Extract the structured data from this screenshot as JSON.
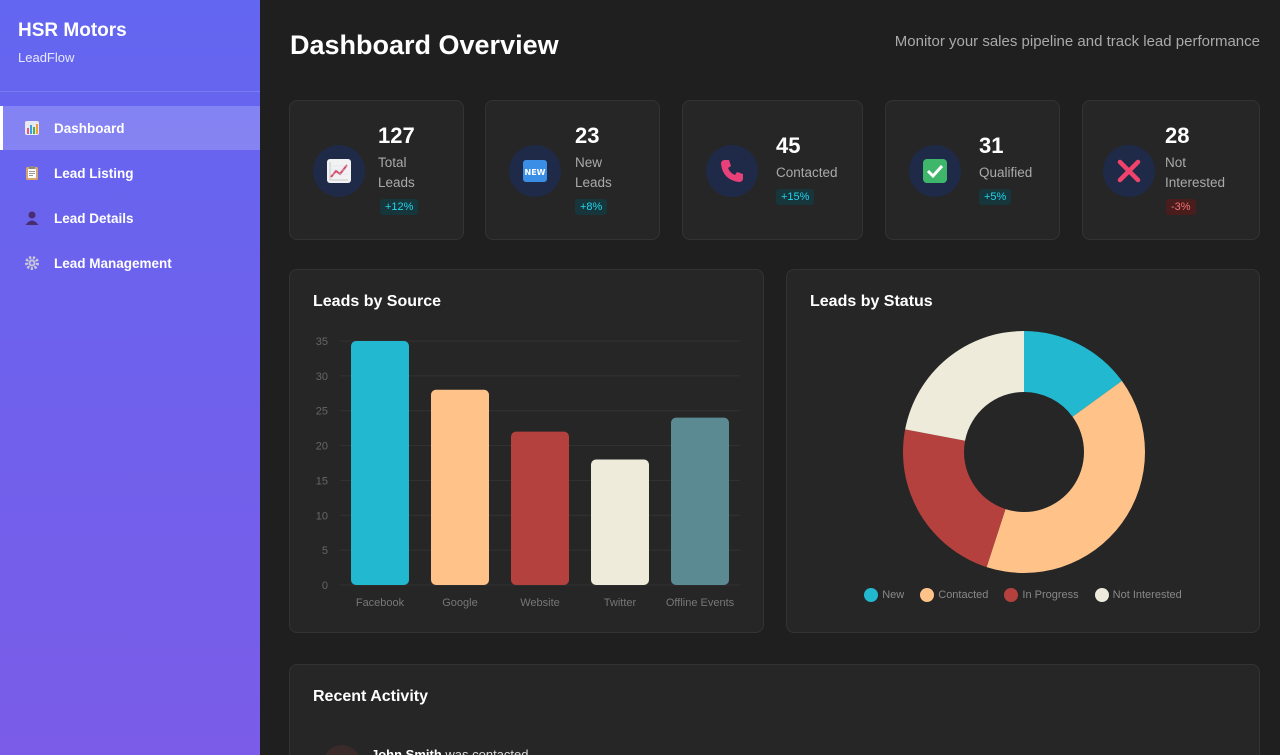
{
  "sidebar": {
    "title": "HSR Motors",
    "subtitle": "LeadFlow",
    "items": [
      {
        "label": "Dashboard",
        "icon": "chart-icon"
      },
      {
        "label": "Lead Listing",
        "icon": "clipboard-icon"
      },
      {
        "label": "Lead Details",
        "icon": "user-icon"
      },
      {
        "label": "Lead Management",
        "icon": "gear-icon"
      }
    ]
  },
  "header": {
    "title": "Dashboard Overview",
    "subtitle": "Monitor your sales pipeline and track lead performance"
  },
  "stats": [
    {
      "value": "127",
      "label_lines": [
        "Total",
        "Leads"
      ],
      "change": "+12%",
      "trend": "up",
      "icon": "trend-chart-icon"
    },
    {
      "value": "23",
      "label_lines": [
        "New",
        "Leads"
      ],
      "change": "+8%",
      "trend": "up",
      "icon": "new-badge-icon"
    },
    {
      "value": "45",
      "label_lines": [
        "Contacted"
      ],
      "change": "+15%",
      "trend": "up",
      "icon": "phone-icon"
    },
    {
      "value": "31",
      "label_lines": [
        "Qualified"
      ],
      "change": "+5%",
      "trend": "up",
      "icon": "check-icon"
    },
    {
      "value": "28",
      "label_lines": [
        "Not",
        "Interested"
      ],
      "change": "-3%",
      "trend": "down",
      "icon": "cross-icon"
    }
  ],
  "chart_data": [
    {
      "type": "bar",
      "title": "Leads by Source",
      "categories": [
        "Facebook",
        "Google",
        "Website",
        "Twitter",
        "Offline Events"
      ],
      "values": [
        35,
        28,
        22,
        18,
        24
      ],
      "colors": [
        "#22b8cf",
        "#ffc38a",
        "#b5413e",
        "#eeebdb",
        "#5c8a93"
      ],
      "yticks": [
        "0",
        "5",
        "10",
        "15",
        "20",
        "25",
        "30",
        "35"
      ],
      "ylim": [
        0,
        35
      ],
      "grid": true
    },
    {
      "type": "pie",
      "title": "Leads by Status",
      "categories": [
        "New",
        "Contacted",
        "In Progress",
        "Not Interested"
      ],
      "values": [
        15,
        40,
        23,
        22
      ],
      "colors": [
        "#22b8cf",
        "#ffc38a",
        "#b5413e",
        "#eeebdb"
      ],
      "donut": true,
      "legend": "bottom"
    }
  ],
  "activity": {
    "title": "Recent Activity",
    "items": [
      {
        "name": "John Smith",
        "text": " was contacted"
      }
    ]
  }
}
